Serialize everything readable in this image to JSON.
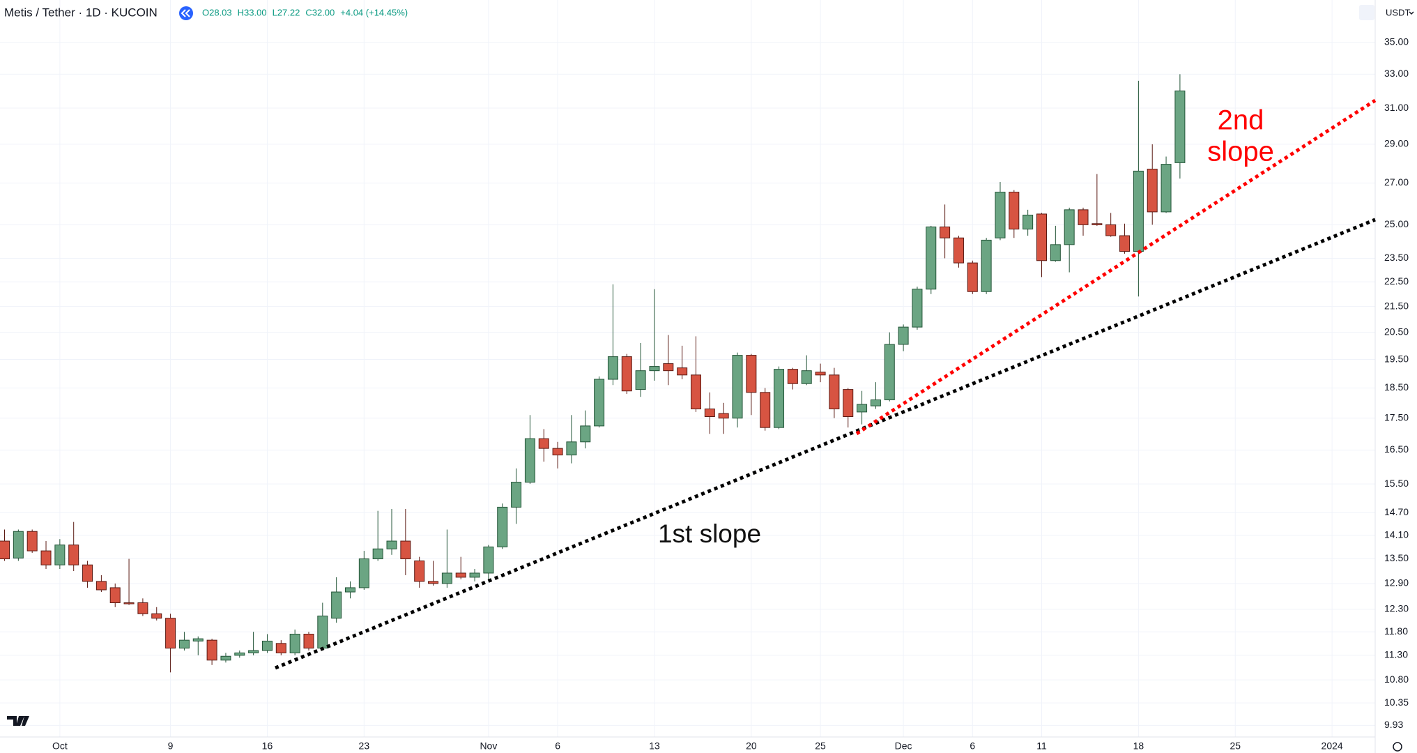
{
  "header": {
    "title": "Metis / Tether · 1D · KUCOIN",
    "ohlc": [
      "O28.03",
      "H33.00",
      "L27.22",
      "C32.00",
      "+4.04 (+14.45%)"
    ],
    "currency": "USDT"
  },
  "chart_data": {
    "type": "candlestick",
    "categories": [
      null,
      null,
      null,
      null,
      "Oct",
      null,
      null,
      null,
      null,
      null,
      null,
      null,
      "9",
      null,
      null,
      null,
      null,
      null,
      null,
      "16",
      null,
      null,
      null,
      null,
      null,
      null,
      "23",
      null,
      null,
      null,
      null,
      null,
      null,
      null,
      null,
      "Nov",
      null,
      null,
      null,
      null,
      "6",
      null,
      null,
      null,
      null,
      null,
      null,
      "13",
      null,
      null,
      null,
      null,
      null,
      null,
      "20",
      null,
      null,
      null,
      null,
      "25",
      null,
      null,
      null,
      null,
      null,
      "Dec",
      null,
      null,
      null,
      null,
      "6",
      null,
      null,
      null,
      null,
      "11",
      null,
      null,
      null,
      null,
      null,
      null,
      "18",
      null,
      null,
      null,
      null,
      null,
      null,
      "25",
      null,
      null,
      null,
      null,
      null,
      null,
      "2024",
      null,
      null,
      null
    ],
    "open": [
      13.95,
      13.52,
      14.2,
      13.7,
      13.35,
      13.85,
      13.35,
      12.95,
      12.8,
      12.45,
      12.45,
      12.2,
      12.1,
      11.45,
      11.6,
      11.62,
      11.2,
      11.3,
      11.35,
      11.4,
      11.55,
      11.35,
      11.75,
      11.45,
      12.1,
      12.7,
      12.8,
      13.5,
      13.75,
      13.95,
      13.45,
      12.95,
      12.9,
      13.15,
      13.05,
      13.15,
      13.8,
      14.85,
      15.55,
      16.85,
      16.55,
      16.35,
      16.75,
      17.25,
      18.8,
      19.6,
      18.45,
      19.1,
      19.35,
      19.2,
      18.95,
      17.8,
      17.65,
      17.5,
      19.65,
      18.35,
      17.2,
      19.15,
      18.65,
      19.05,
      18.95,
      18.45,
      17.7,
      17.9,
      18.1,
      20.05,
      20.7,
      22.2,
      24.9,
      24.4,
      23.3,
      22.1,
      24.4,
      26.55,
      24.8,
      25.5,
      23.4,
      24.1,
      25.7,
      25.05,
      25.0,
      24.5,
      23.8,
      27.7,
      25.6,
      28.03,
      null,
      null,
      null,
      null,
      null,
      null,
      null,
      null,
      null,
      null,
      null,
      null,
      null,
      null
    ],
    "high": [
      14.25,
      14.25,
      14.25,
      13.95,
      14.0,
      14.45,
      13.45,
      13.1,
      12.9,
      13.5,
      12.55,
      12.35,
      12.2,
      11.8,
      11.7,
      11.65,
      11.35,
      11.4,
      11.8,
      11.75,
      11.62,
      11.85,
      11.8,
      12.45,
      13.05,
      12.95,
      13.7,
      14.75,
      14.8,
      14.8,
      13.55,
      13.45,
      14.25,
      13.55,
      13.25,
      13.85,
      14.95,
      15.95,
      17.6,
      17.15,
      16.75,
      17.6,
      17.75,
      18.9,
      22.4,
      19.7,
      20.1,
      22.2,
      20.4,
      20.0,
      20.35,
      18.35,
      18.0,
      19.75,
      19.7,
      18.5,
      19.25,
      19.2,
      19.65,
      19.35,
      19.2,
      18.5,
      18.4,
      18.7,
      20.5,
      20.8,
      22.3,
      24.95,
      25.95,
      24.5,
      23.4,
      24.4,
      27.05,
      26.65,
      25.7,
      25.55,
      24.95,
      25.8,
      25.8,
      27.45,
      25.55,
      25.05,
      32.6,
      29.0,
      28.35,
      33.0,
      null,
      null,
      null,
      null,
      null,
      null,
      null,
      null,
      null,
      null,
      null,
      null,
      null,
      null
    ],
    "low": [
      13.45,
      13.45,
      13.65,
      13.25,
      13.25,
      13.2,
      12.8,
      12.7,
      12.35,
      12.4,
      12.15,
      12.05,
      10.95,
      11.4,
      11.3,
      11.1,
      11.15,
      11.25,
      11.3,
      11.35,
      11.3,
      11.3,
      11.4,
      11.4,
      12.0,
      12.55,
      12.75,
      13.45,
      13.6,
      13.1,
      12.8,
      12.85,
      12.8,
      13.0,
      12.95,
      12.95,
      13.75,
      14.4,
      15.5,
      16.15,
      15.95,
      16.1,
      16.55,
      17.2,
      18.6,
      18.3,
      18.2,
      18.75,
      18.6,
      18.8,
      17.7,
      17.0,
      17.0,
      17.2,
      17.6,
      17.1,
      17.15,
      18.45,
      18.6,
      18.7,
      17.5,
      17.2,
      17.3,
      17.8,
      18.05,
      19.8,
      20.6,
      22.0,
      23.5,
      23.1,
      22.0,
      22.0,
      24.3,
      24.4,
      24.5,
      22.7,
      23.35,
      22.9,
      24.5,
      24.95,
      24.45,
      23.7,
      21.9,
      25.0,
      25.55,
      27.22,
      null,
      null,
      null,
      null,
      null,
      null,
      null,
      null,
      null,
      null,
      null,
      null,
      null,
      null
    ],
    "close": [
      13.5,
      14.2,
      13.7,
      13.35,
      13.85,
      13.35,
      12.95,
      12.75,
      12.45,
      12.44,
      12.2,
      12.1,
      11.45,
      11.62,
      11.65,
      11.2,
      11.28,
      11.35,
      11.4,
      11.6,
      11.35,
      11.75,
      11.45,
      12.15,
      12.7,
      12.8,
      13.5,
      13.75,
      13.95,
      13.5,
      12.95,
      12.9,
      13.15,
      13.05,
      13.15,
      13.8,
      14.85,
      15.55,
      16.85,
      16.55,
      16.35,
      16.75,
      17.25,
      18.8,
      19.6,
      18.4,
      19.1,
      19.25,
      19.1,
      18.95,
      17.8,
      17.55,
      17.5,
      19.65,
      18.35,
      17.2,
      19.15,
      18.65,
      19.1,
      18.95,
      17.8,
      17.55,
      17.95,
      18.1,
      20.05,
      20.7,
      22.2,
      24.9,
      24.4,
      23.3,
      22.1,
      24.3,
      26.55,
      24.8,
      25.45,
      23.4,
      24.1,
      25.7,
      25.0,
      25.0,
      24.5,
      23.8,
      27.6,
      25.6,
      27.95,
      32.0,
      null,
      null,
      null,
      null,
      null,
      null,
      null,
      null,
      null,
      null,
      null,
      null,
      null,
      null
    ],
    "up_color": "#6ba583",
    "down_color": "#d75442",
    "ylim": [
      9.72,
      37.84
    ],
    "log_scale": true,
    "grid": true,
    "yticks": [
      {
        "value": 35,
        "label": "35.00"
      },
      {
        "value": 33,
        "label": "33.00"
      },
      {
        "value": 31,
        "label": "31.00"
      },
      {
        "value": 29,
        "label": "29.00"
      },
      {
        "value": 27,
        "label": "27.00"
      },
      {
        "value": 25,
        "label": "25.00"
      },
      {
        "value": 23.5,
        "label": "23.50"
      },
      {
        "value": 22.5,
        "label": "22.50"
      },
      {
        "value": 21.5,
        "label": "21.50"
      },
      {
        "value": 20.5,
        "label": "20.50"
      },
      {
        "value": 19.5,
        "label": "19.50"
      },
      {
        "value": 18.5,
        "label": "18.50"
      },
      {
        "value": 17.5,
        "label": "17.50"
      },
      {
        "value": 16.5,
        "label": "16.50"
      },
      {
        "value": 15.5,
        "label": "15.50"
      },
      {
        "value": 14.7,
        "label": "14.70"
      },
      {
        "value": 14.1,
        "label": "14.10"
      },
      {
        "value": 13.5,
        "label": "13.50"
      },
      {
        "value": 12.9,
        "label": "12.90"
      },
      {
        "value": 12.3,
        "label": "12.30"
      },
      {
        "value": 11.8,
        "label": "11.80"
      },
      {
        "value": 11.3,
        "label": "11.30"
      },
      {
        "value": 10.8,
        "label": "10.80"
      },
      {
        "value": 10.35,
        "label": "10.35"
      },
      {
        "value": 9.93,
        "label": "9.93"
      }
    ],
    "annotations": [
      "1st slope",
      "2nd",
      "slope"
    ]
  }
}
